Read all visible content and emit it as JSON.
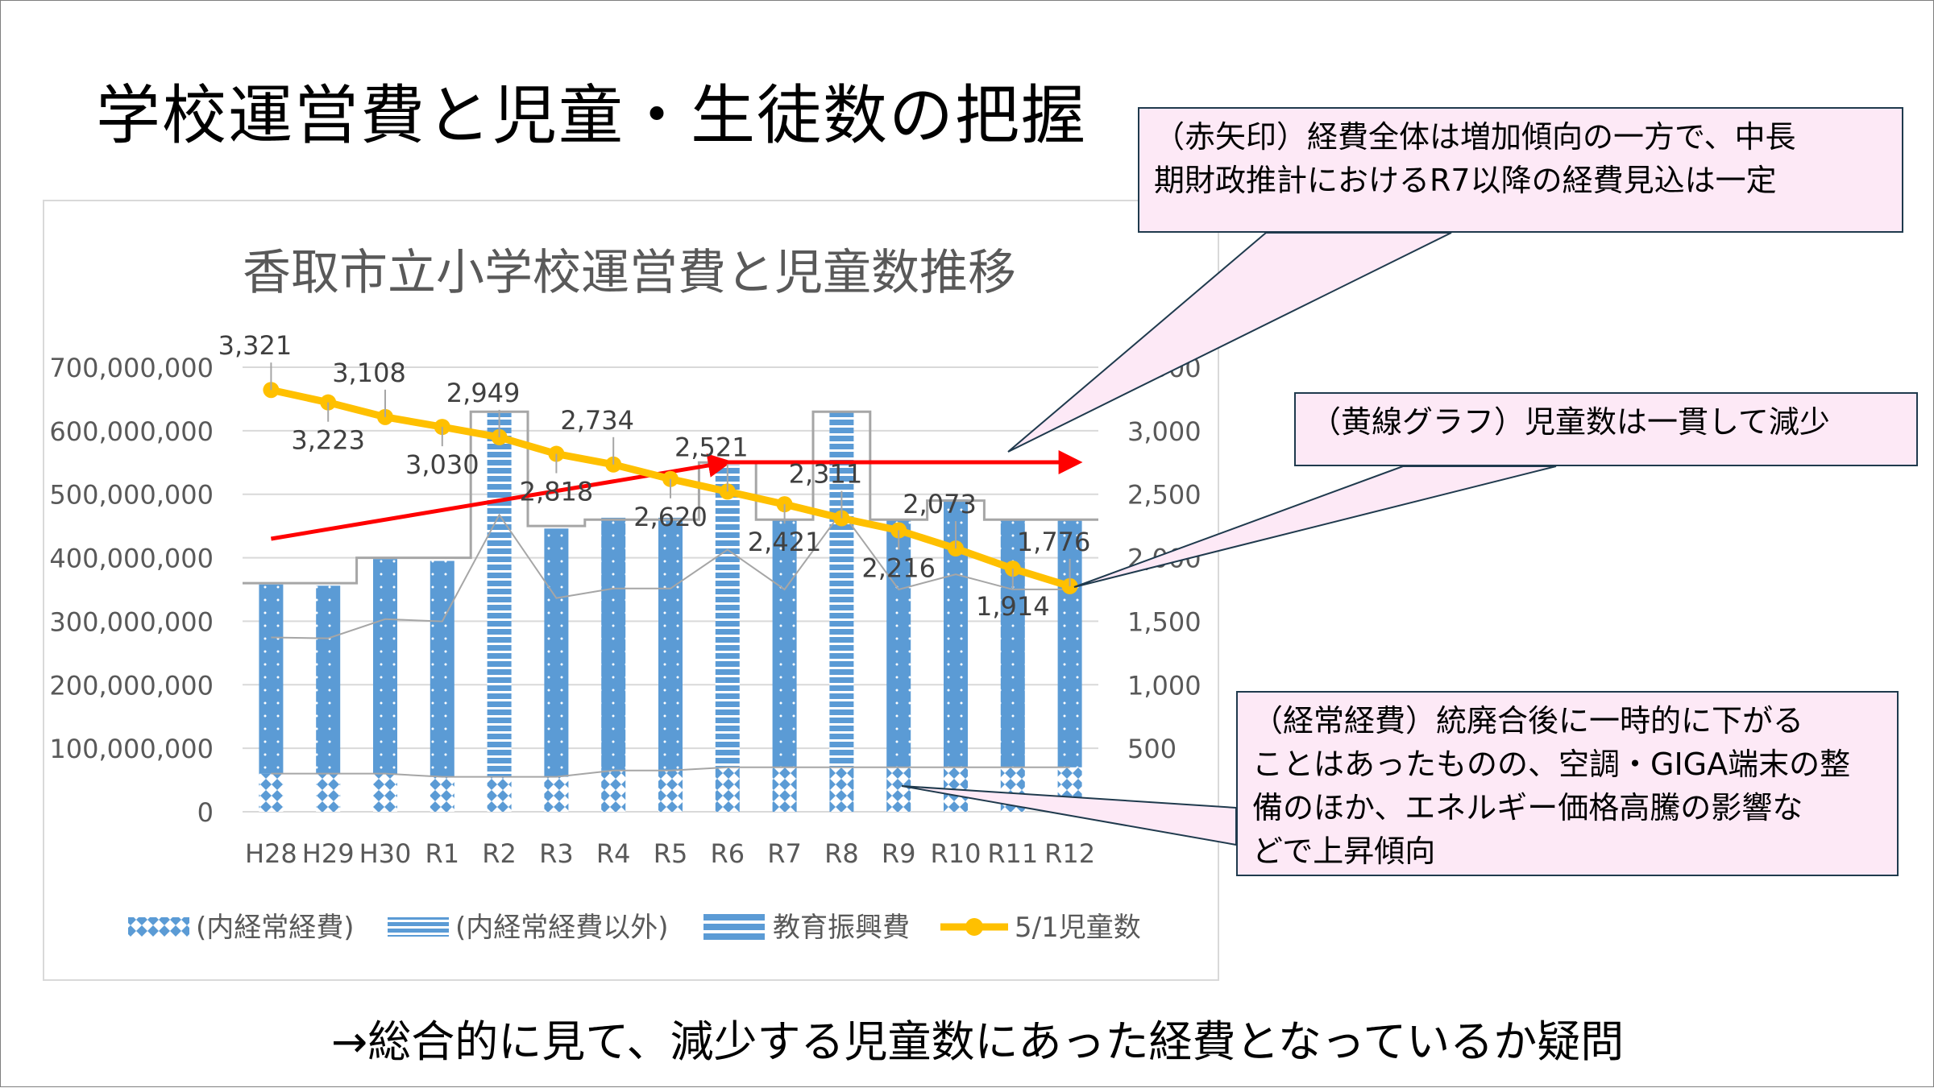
{
  "slide": {
    "title": "学校運営費と児童・生徒数の把握",
    "bottom_text": "→総合的に見て、減少する児童数にあった経費となっているか疑問"
  },
  "callouts": {
    "red_arrow_note": [
      "（赤矢印）経費全体は増加傾向の一方で、中長",
      "期財政推計におけるR7以降の経費見込は一定"
    ],
    "yellow_line_note": [
      "（黄線グラフ）児童数は一貫して減少"
    ],
    "recurring_cost_note": [
      "（経常経費）統廃合後に一時的に下がる",
      "ことはあったものの、空調・GIGA端末の整",
      "備のほか、エネルギー価格高騰の影響な",
      "どで上昇傾向"
    ]
  },
  "colors": {
    "bar_blue": "#5b9bd5",
    "line_yellow": "#ffc000",
    "arrow_red": "#ff0000",
    "gray_line": "#a6a6a6",
    "callout_fill": "#fde9f6",
    "callout_border": "#1f3a4d"
  },
  "chart_data": {
    "type": "bar",
    "title": "香取市立小学校運営費と児童数推移",
    "categories": [
      "H28",
      "H29",
      "H30",
      "R1",
      "R2",
      "R3",
      "R4",
      "R5",
      "R6",
      "R7",
      "R8",
      "R9",
      "R10",
      "R11",
      "R12"
    ],
    "series": [
      {
        "name": "(内経常経費)",
        "type": "stacked-bar",
        "axis": "left",
        "values": [
          60000000,
          60000000,
          60000000,
          55000000,
          55000000,
          55000000,
          65000000,
          65000000,
          70000000,
          70000000,
          70000000,
          70000000,
          70000000,
          70000000,
          70000000
        ]
      },
      {
        "name": "(内経常経費以外)",
        "type": "stacked-bar",
        "axis": "left",
        "values": [
          298000000,
          296000000,
          338000000,
          340000000,
          573000000,
          391000000,
          398000000,
          398000000,
          476000000,
          389000000,
          559000000,
          389000000,
          422000000,
          389000000,
          389000000
        ]
      },
      {
        "name": "教育振興費",
        "type": "line",
        "axis": "left",
        "values": [
          360000000,
          360000000,
          400000000,
          400000000,
          630000000,
          450000000,
          460000000,
          460000000,
          550000000,
          460000000,
          630000000,
          460000000,
          490000000,
          460000000,
          460000000
        ]
      },
      {
        "name": "5/1児童数",
        "type": "line",
        "axis": "right",
        "values": [
          3321,
          3223,
          3108,
          3030,
          2949,
          2818,
          2734,
          2620,
          2521,
          2421,
          2311,
          2216,
          2073,
          1914,
          1776
        ],
        "labels": [
          "3,321",
          "3,223",
          "3,108",
          "3,030",
          "2,949",
          "2,818",
          "2,734",
          "2,620",
          "2,521",
          "2,421",
          "2,311",
          "2,216",
          "2,073",
          "1,914",
          "1,776"
        ]
      }
    ],
    "y_left": {
      "min": 0,
      "max": 700000000,
      "ticks": [
        "0",
        "100,000,000",
        "200,000,000",
        "300,000,000",
        "400,000,000",
        "500,000,000",
        "600,000,000",
        "700,000,000"
      ]
    },
    "y_right": {
      "min": 0,
      "max": 3500,
      "ticks": [
        "0",
        "500",
        "1,000",
        "1,500",
        "2,000",
        "2,500",
        "3,000",
        "3,500"
      ]
    },
    "legend_position": "bottom",
    "grid": true,
    "annotations": [
      {
        "type": "arrow",
        "color": "red",
        "from_category": "H28",
        "to_category": "R6",
        "meaning": "overall cost increasing"
      },
      {
        "type": "arrow",
        "color": "red",
        "from_category": "R6",
        "to_category": "R12",
        "meaning": "cost projection flat"
      }
    ]
  }
}
